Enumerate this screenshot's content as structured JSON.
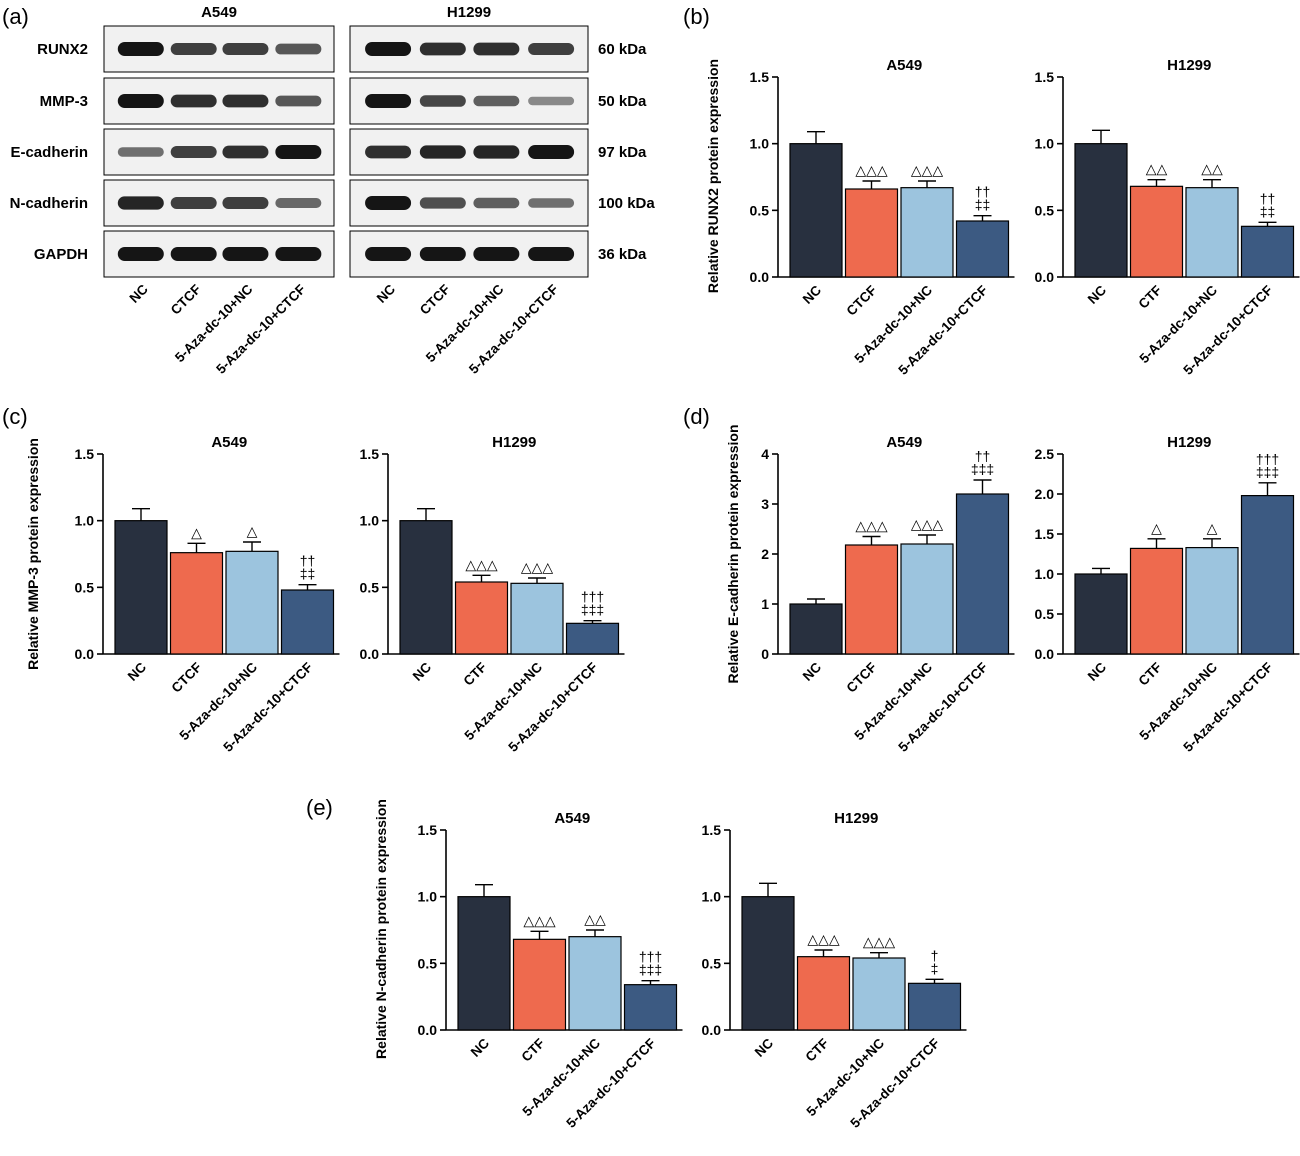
{
  "colors": {
    "NC": "#28303f",
    "CTCF": "#ee6a4e",
    "Aza_NC": "#9cc4de",
    "Aza_CTCF": "#3c5a82",
    "axis": "#000000",
    "band": "#151515",
    "blot_bg": "#f1f1f1"
  },
  "western_blot": {
    "panel_label": "(a)",
    "cell_lines": [
      "A549",
      "H1299"
    ],
    "proteins": [
      "RUNX2",
      "MMP-3",
      "E-cadherin",
      "N-cadherin",
      "GAPDH"
    ],
    "sizes": [
      "60 kDa",
      "50 kDa",
      "97 kDa",
      "100 kDa",
      "36 kDa"
    ],
    "lane_labels": [
      "NC",
      "CTCF",
      "5-Aza-dc-10+NC",
      "5-Aza-dc-10+CTCF"
    ],
    "band_intensity": {
      "A549": [
        [
          1.0,
          0.75,
          0.75,
          0.6
        ],
        [
          1.0,
          0.85,
          0.85,
          0.6
        ],
        [
          0.45,
          0.75,
          0.85,
          1.0
        ],
        [
          0.9,
          0.75,
          0.75,
          0.5
        ],
        [
          1.0,
          1.0,
          1.0,
          1.0
        ]
      ],
      "H1299": [
        [
          1.0,
          0.85,
          0.85,
          0.75
        ],
        [
          1.0,
          0.7,
          0.55,
          0.3
        ],
        [
          0.85,
          0.9,
          0.9,
          1.0
        ],
        [
          1.0,
          0.65,
          0.55,
          0.45
        ],
        [
          1.0,
          1.0,
          1.0,
          1.0
        ]
      ]
    }
  },
  "chart_data": [
    {
      "panel": "(b)",
      "type": "bar",
      "ylabel": "Relative RUNX2 protein expression",
      "ylim": [
        0,
        1.5
      ],
      "ticks": [
        "0.0",
        "0.5",
        "1.0",
        "1.5"
      ],
      "charts": [
        {
          "title": "A549",
          "categories": [
            "NC",
            "CTCF",
            "5-Aza-dc-10+NC",
            "5-Aza-dc-10+CTCF"
          ],
          "values": [
            1.0,
            0.66,
            0.67,
            0.42
          ],
          "errors": [
            0.09,
            0.06,
            0.05,
            0.04
          ],
          "annotations": [
            [],
            [
              "△△△"
            ],
            [
              "△△△"
            ],
            [
              "††",
              "‡‡"
            ]
          ]
        },
        {
          "title": "H1299",
          "categories": [
            "NC",
            "CTF",
            "5-Aza-dc-10+NC",
            "5-Aza-dc-10+CTCF"
          ],
          "values": [
            1.0,
            0.68,
            0.67,
            0.38
          ],
          "errors": [
            0.1,
            0.05,
            0.06,
            0.03
          ],
          "annotations": [
            [],
            [
              "△△"
            ],
            [
              "△△"
            ],
            [
              "††",
              "‡‡"
            ]
          ]
        }
      ]
    },
    {
      "panel": "(c)",
      "type": "bar",
      "ylabel": "Relative MMP-3 protein expression",
      "ylim": [
        0,
        1.5
      ],
      "ticks": [
        "0.0",
        "0.5",
        "1.0",
        "1.5"
      ],
      "charts": [
        {
          "title": "A549",
          "categories": [
            "NC",
            "CTCF",
            "5-Aza-dc-10+NC",
            "5-Aza-dc-10+CTCF"
          ],
          "values": [
            1.0,
            0.76,
            0.77,
            0.48
          ],
          "errors": [
            0.09,
            0.07,
            0.07,
            0.04
          ],
          "annotations": [
            [],
            [
              "△"
            ],
            [
              "△"
            ],
            [
              "††",
              "‡‡"
            ]
          ]
        },
        {
          "title": "H1299",
          "categories": [
            "NC",
            "CTF",
            "5-Aza-dc-10+NC",
            "5-Aza-dc-10+CTCF"
          ],
          "values": [
            1.0,
            0.54,
            0.53,
            0.23
          ],
          "errors": [
            0.09,
            0.05,
            0.04,
            0.02
          ],
          "annotations": [
            [],
            [
              "△△△"
            ],
            [
              "△△△"
            ],
            [
              "†††",
              "‡‡‡"
            ]
          ]
        }
      ]
    },
    {
      "panel": "(d)",
      "type": "bar",
      "ylabel": "Relative E-cadherin protein expression",
      "charts": [
        {
          "title": "A549",
          "ylim": [
            0,
            4
          ],
          "ticks": [
            "0",
            "1",
            "2",
            "3",
            "4"
          ],
          "categories": [
            "NC",
            "CTCF",
            "5-Aza-dc-10+NC",
            "5-Aza-dc-10+CTCF"
          ],
          "values": [
            1.0,
            2.18,
            2.2,
            3.2
          ],
          "errors": [
            0.1,
            0.17,
            0.18,
            0.28
          ],
          "annotations": [
            [],
            [
              "△△△"
            ],
            [
              "△△△"
            ],
            [
              "††",
              "‡‡‡"
            ]
          ]
        },
        {
          "title": "H1299",
          "ylim": [
            0,
            2.5
          ],
          "ticks": [
            "0.0",
            "0.5",
            "1.0",
            "1.5",
            "2.0",
            "2.5"
          ],
          "categories": [
            "NC",
            "CTF",
            "5-Aza-dc-10+NC",
            "5-Aza-dc-10+CTCF"
          ],
          "values": [
            1.0,
            1.32,
            1.33,
            1.98
          ],
          "errors": [
            0.07,
            0.12,
            0.11,
            0.16
          ],
          "annotations": [
            [],
            [
              "△"
            ],
            [
              "△"
            ],
            [
              "†††",
              "‡‡‡"
            ]
          ]
        }
      ]
    },
    {
      "panel": "(e)",
      "type": "bar",
      "ylabel": "Relative N-cadherin protein expression",
      "ylim": [
        0,
        1.5
      ],
      "ticks": [
        "0.0",
        "0.5",
        "1.0",
        "1.5"
      ],
      "charts": [
        {
          "title": "A549",
          "categories": [
            "NC",
            "CTF",
            "5-Aza-dc-10+NC",
            "5-Aza-dc-10+CTCF"
          ],
          "values": [
            1.0,
            0.68,
            0.7,
            0.34
          ],
          "errors": [
            0.09,
            0.06,
            0.05,
            0.03
          ],
          "annotations": [
            [],
            [
              "△△△"
            ],
            [
              "△△"
            ],
            [
              "†††",
              "‡‡‡"
            ]
          ]
        },
        {
          "title": "H1299",
          "categories": [
            "NC",
            "CTF",
            "5-Aza-dc-10+NC",
            "5-Aza-dc-10+CTCF"
          ],
          "values": [
            1.0,
            0.55,
            0.54,
            0.35
          ],
          "errors": [
            0.1,
            0.05,
            0.04,
            0.03
          ],
          "annotations": [
            [],
            [
              "△△△"
            ],
            [
              "△△△"
            ],
            [
              "†",
              "‡"
            ]
          ]
        }
      ]
    }
  ]
}
